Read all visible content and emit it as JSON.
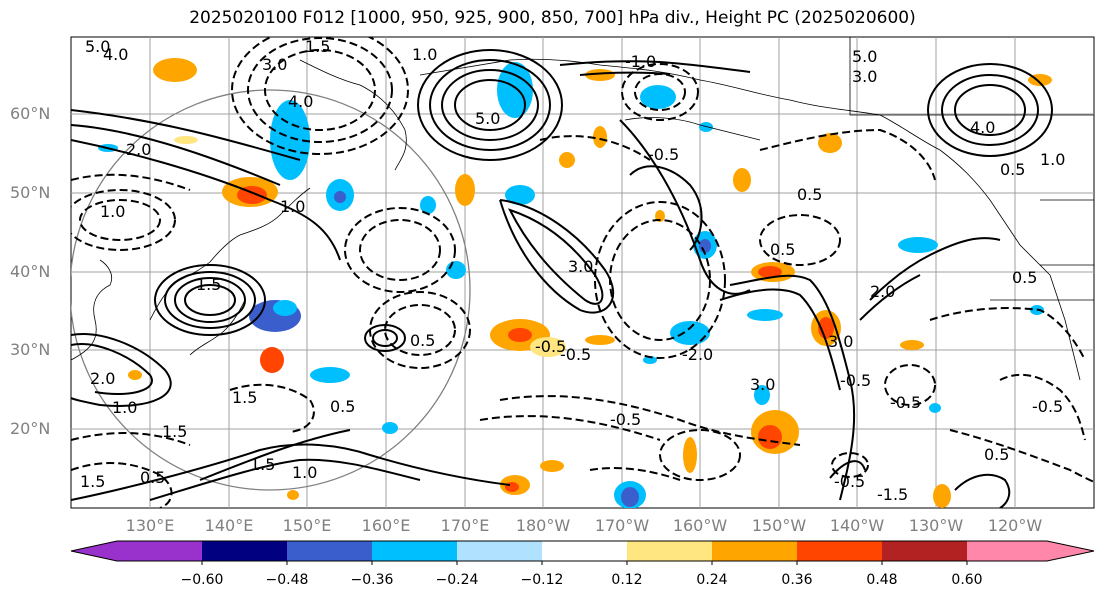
{
  "title": "2025020100 F012 [1000, 950, 925, 900, 850, 700] hPa div., Height PC (2025020600)",
  "lat_labels": [
    "60°N",
    "50°N",
    "40°N",
    "30°N",
    "20°N"
  ],
  "lon_labels": [
    "130°E",
    "140°E",
    "150°E",
    "160°E",
    "170°E",
    "180°W",
    "170°W",
    "160°W",
    "150°W",
    "140°W",
    "130°W",
    "120°W"
  ],
  "colorbar": {
    "ticks": [
      "−0.60",
      "−0.48",
      "−0.36",
      "−0.24",
      "−0.12",
      "0.12",
      "0.24",
      "0.36",
      "0.48",
      "0.60"
    ],
    "colors": [
      "#9932cc",
      "#000080",
      "#3a5fcd",
      "#00bfff",
      "#b0e2ff",
      "#ffffff",
      "#ffe680",
      "#ffa500",
      "#ff4500",
      "#b22222",
      "#ff88aa"
    ]
  },
  "contour_labels": [
    "5.0",
    "4.0",
    "3.0",
    "2.0",
    "1.5",
    "1.0",
    "0.5",
    "-0.5",
    "-1.0",
    "-1.5",
    "-2.0",
    "-3.0"
  ]
}
